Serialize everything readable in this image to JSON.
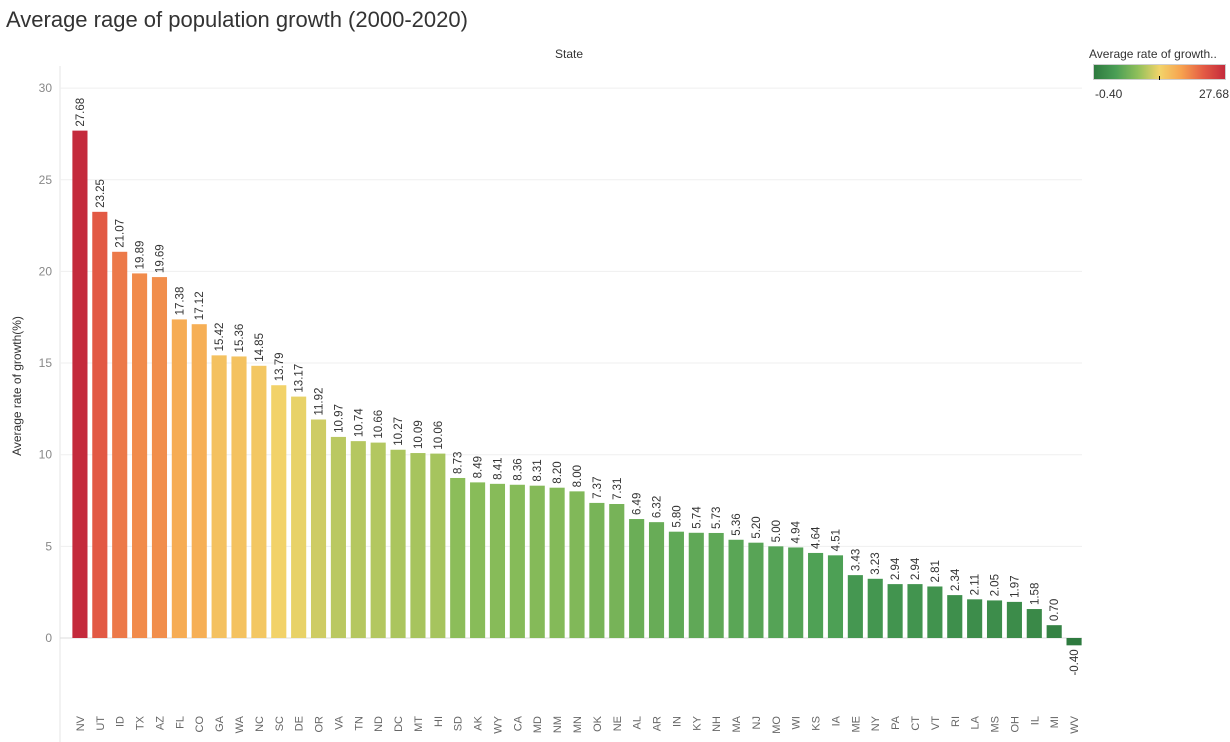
{
  "title": "Average rage of population growth (2000-2020)",
  "chart_data": {
    "type": "bar",
    "header": "State",
    "ylabel": "Average rate of growth(%)",
    "ylim": [
      -4.5,
      30
    ],
    "yticks": [
      0,
      5,
      10,
      15,
      20,
      25,
      30
    ],
    "categories": [
      "NV",
      "UT",
      "ID",
      "TX",
      "AZ",
      "FL",
      "CO",
      "GA",
      "WA",
      "NC",
      "SC",
      "DE",
      "OR",
      "VA",
      "TN",
      "ND",
      "DC",
      "MT",
      "HI",
      "SD",
      "AK",
      "WY",
      "CA",
      "MD",
      "NM",
      "MN",
      "OK",
      "NE",
      "AL",
      "AR",
      "IN",
      "KY",
      "NH",
      "MA",
      "NJ",
      "MO",
      "WI",
      "KS",
      "IA",
      "ME",
      "NY",
      "PA",
      "CT",
      "VT",
      "RI",
      "LA",
      "MS",
      "OH",
      "IL",
      "MI",
      "WV"
    ],
    "values": [
      27.68,
      23.25,
      21.07,
      19.89,
      19.69,
      17.38,
      17.12,
      15.42,
      15.36,
      14.85,
      13.79,
      13.17,
      11.92,
      10.97,
      10.74,
      10.66,
      10.27,
      10.09,
      10.06,
      8.73,
      8.49,
      8.41,
      8.36,
      8.31,
      8.2,
      8.0,
      7.37,
      7.31,
      6.49,
      6.32,
      5.8,
      5.74,
      5.73,
      5.36,
      5.2,
      5.0,
      4.94,
      4.64,
      4.51,
      3.43,
      3.23,
      2.94,
      2.94,
      2.81,
      2.34,
      2.11,
      2.05,
      1.97,
      1.58,
      0.7,
      -0.4
    ],
    "value_labels": [
      "27.68",
      "23.25",
      "21.07",
      "19.89",
      "19.69",
      "17.38",
      "17.12",
      "15.42",
      "15.36",
      "14.85",
      "13.79",
      "13.17",
      "11.92",
      "10.97",
      "10.74",
      "10.66",
      "10.27",
      "10.09",
      "10.06",
      "8.73",
      "8.49",
      "8.41",
      "8.36",
      "8.31",
      "8.20",
      "8.00",
      "7.37",
      "7.31",
      "6.49",
      "6.32",
      "5.80",
      "5.74",
      "5.73",
      "5.36",
      "5.20",
      "5.00",
      "4.94",
      "4.64",
      "4.51",
      "3.43",
      "3.23",
      "2.94",
      "2.94",
      "2.81",
      "2.34",
      "2.11",
      "2.05",
      "1.97",
      "1.58",
      "0.70",
      "-0.40"
    ],
    "grid": true,
    "legend": {
      "title": "Average rate of growth..",
      "min_label": "-0.40",
      "max_label": "27.68",
      "placement": "top-right",
      "colors": [
        "#2e7a3f",
        "#4a9e55",
        "#8fbf5a",
        "#f2d46a",
        "#f7a24f",
        "#e45c44",
        "#c42a3c"
      ]
    }
  }
}
